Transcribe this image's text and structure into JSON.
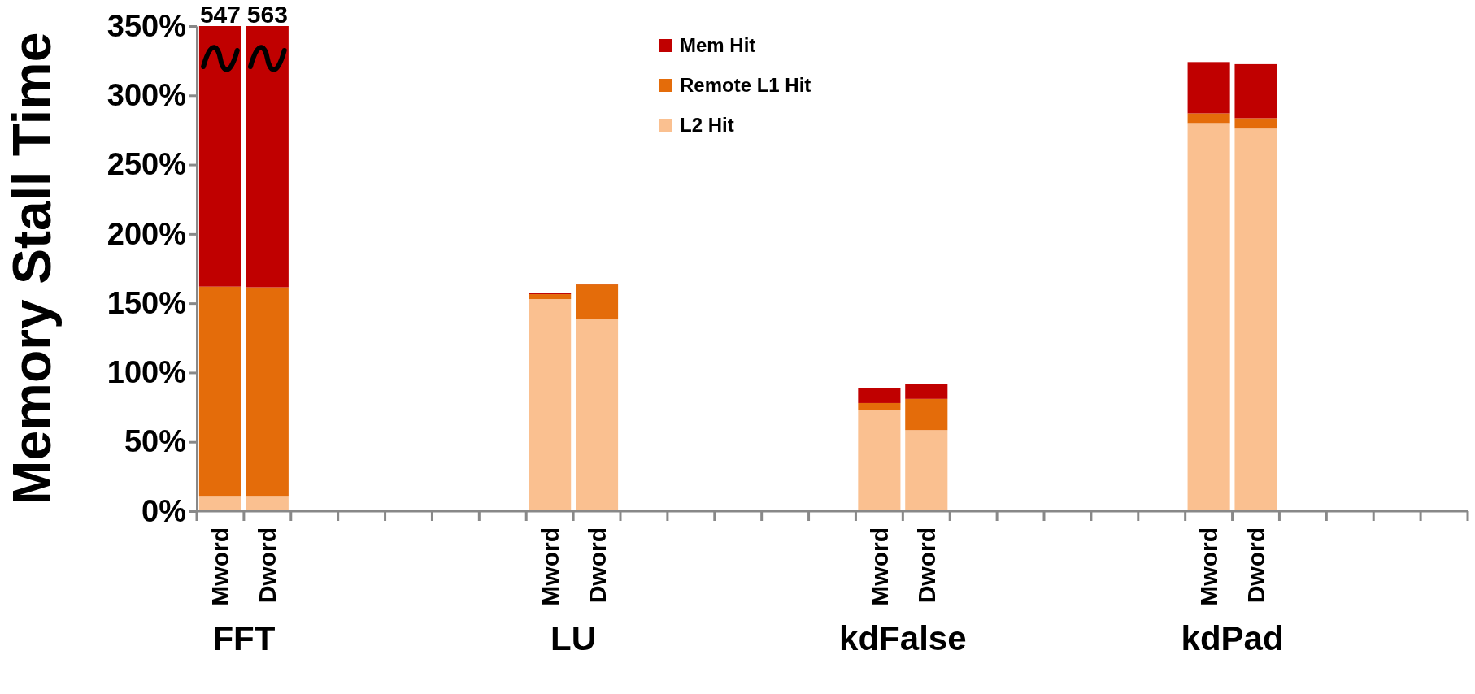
{
  "chart_data": {
    "type": "bar",
    "stacked": true,
    "ylabel": "Memory Stall Time",
    "categories": [
      "Mword",
      "Dword",
      null,
      null,
      null,
      null,
      null,
      "Mword",
      "Dword",
      null,
      null,
      null,
      null,
      null,
      "Mword",
      "Dword",
      null,
      null,
      null,
      null,
      null,
      "Mword",
      "Dword",
      null,
      null,
      null,
      null
    ],
    "series": [
      {
        "name": "L2 Hit",
        "color": "#fac090",
        "values": [
          11,
          11,
          null,
          null,
          null,
          null,
          null,
          153,
          138.5,
          null,
          null,
          null,
          null,
          null,
          73,
          58.5,
          null,
          null,
          null,
          null,
          null,
          280,
          276,
          null,
          null,
          null,
          null
        ]
      },
      {
        "name": "Remote L1 Hit",
        "color": "#e46c0a",
        "values": [
          151,
          150.5,
          null,
          null,
          null,
          null,
          null,
          3.5,
          25,
          null,
          null,
          null,
          null,
          null,
          5,
          22.5,
          null,
          null,
          null,
          null,
          null,
          7,
          7.5,
          null,
          null,
          null,
          null
        ]
      },
      {
        "name": "Mem Hit",
        "color": "#c00000",
        "values": [
          188,
          188.5,
          null,
          null,
          null,
          null,
          null,
          0.6,
          0.6,
          null,
          null,
          null,
          null,
          null,
          11,
          11,
          null,
          null,
          null,
          null,
          null,
          37,
          39,
          null,
          null,
          null,
          null
        ]
      }
    ],
    "ylim": [
      0,
      350
    ],
    "yticks": [
      {
        "value": 0,
        "label": "0%"
      },
      {
        "value": 50,
        "label": "50%"
      },
      {
        "value": 100,
        "label": "100%"
      },
      {
        "value": 150,
        "label": "150%"
      },
      {
        "value": 200,
        "label": "200%"
      },
      {
        "value": 250,
        "label": "250%"
      },
      {
        "value": 300,
        "label": "300%"
      },
      {
        "value": 350,
        "label": "350%"
      }
    ],
    "annotations": [
      "FFT",
      "LU",
      "kdFalse",
      "kdPad",
      {
        "text": "547",
        "x": "Mword",
        "y": 350
      },
      {
        "text": "563",
        "x": "Dword",
        "y": 350
      }
    ],
    "legend": "top",
    "grid": false
  }
}
